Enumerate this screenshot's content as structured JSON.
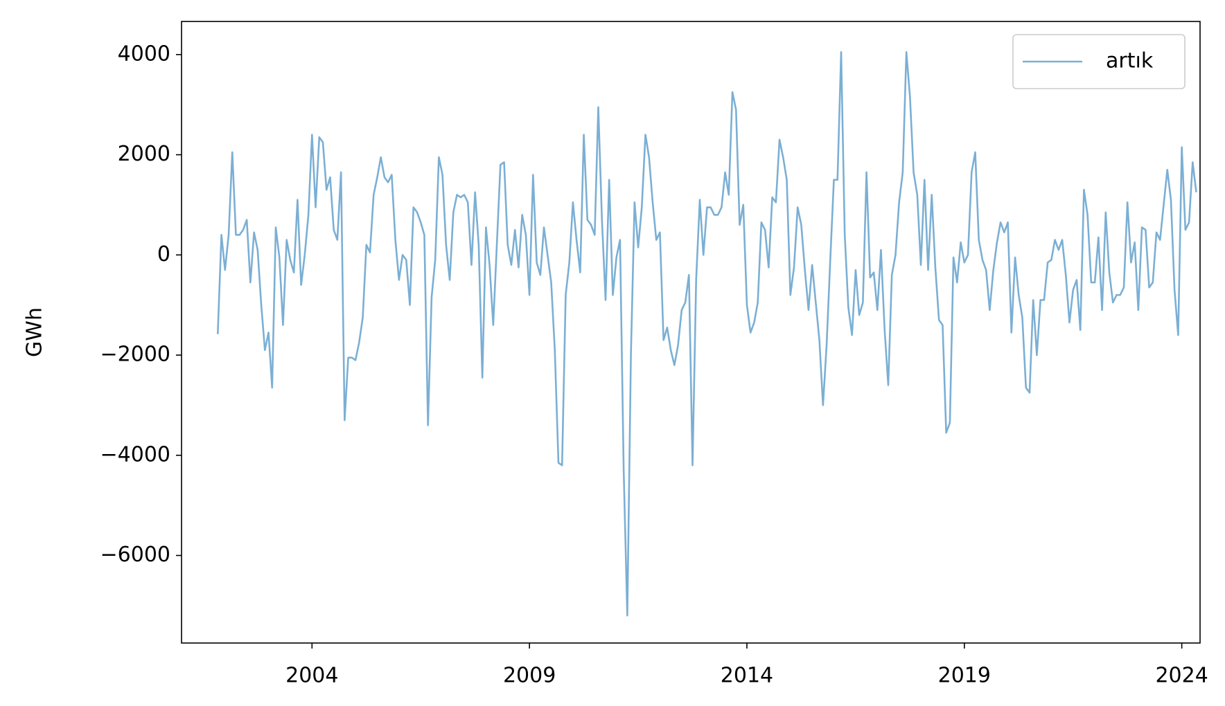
{
  "chart_data": {
    "type": "line",
    "y_label": "GWh",
    "x": [
      2001.833,
      2001.917,
      2002.0,
      2002.083,
      2002.167,
      2002.25,
      2002.333,
      2002.417,
      2002.5,
      2002.583,
      2002.667,
      2002.75,
      2002.833,
      2002.917,
      2003.0,
      2003.083,
      2003.167,
      2003.25,
      2003.333,
      2003.417,
      2003.5,
      2003.583,
      2003.667,
      2003.75,
      2003.833,
      2003.917,
      2004.0,
      2004.083,
      2004.167,
      2004.25,
      2004.333,
      2004.417,
      2004.5,
      2004.583,
      2004.667,
      2004.75,
      2004.833,
      2004.917,
      2005.0,
      2005.083,
      2005.167,
      2005.25,
      2005.333,
      2005.417,
      2005.5,
      2005.583,
      2005.667,
      2005.75,
      2005.833,
      2005.917,
      2006.0,
      2006.083,
      2006.167,
      2006.25,
      2006.333,
      2006.417,
      2006.5,
      2006.583,
      2006.667,
      2006.75,
      2006.833,
      2006.917,
      2007.0,
      2007.083,
      2007.167,
      2007.25,
      2007.333,
      2007.417,
      2007.5,
      2007.583,
      2007.667,
      2007.75,
      2007.833,
      2007.917,
      2008.0,
      2008.083,
      2008.167,
      2008.25,
      2008.333,
      2008.417,
      2008.5,
      2008.583,
      2008.667,
      2008.75,
      2008.833,
      2008.917,
      2009.0,
      2009.083,
      2009.167,
      2009.25,
      2009.333,
      2009.417,
      2009.5,
      2009.583,
      2009.667,
      2009.75,
      2009.833,
      2009.917,
      2010.0,
      2010.083,
      2010.167,
      2010.25,
      2010.333,
      2010.417,
      2010.5,
      2010.583,
      2010.667,
      2010.75,
      2010.833,
      2010.917,
      2011.0,
      2011.083,
      2011.167,
      2011.25,
      2011.333,
      2011.417,
      2011.5,
      2011.583,
      2011.667,
      2011.75,
      2011.833,
      2011.917,
      2012.0,
      2012.083,
      2012.167,
      2012.25,
      2012.333,
      2012.417,
      2012.5,
      2012.583,
      2012.667,
      2012.75,
      2012.833,
      2012.917,
      2013.0,
      2013.083,
      2013.167,
      2013.25,
      2013.333,
      2013.417,
      2013.5,
      2013.583,
      2013.667,
      2013.75,
      2013.833,
      2013.917,
      2014.0,
      2014.083,
      2014.167,
      2014.25,
      2014.333,
      2014.417,
      2014.5,
      2014.583,
      2014.667,
      2014.75,
      2014.833,
      2014.917,
      2015.0,
      2015.083,
      2015.167,
      2015.25,
      2015.333,
      2015.417,
      2015.5,
      2015.583,
      2015.667,
      2015.75,
      2015.833,
      2015.917,
      2016.0,
      2016.083,
      2016.167,
      2016.25,
      2016.333,
      2016.417,
      2016.5,
      2016.583,
      2016.667,
      2016.75,
      2016.833,
      2016.917,
      2017.0,
      2017.083,
      2017.167,
      2017.25,
      2017.333,
      2017.417,
      2017.5,
      2017.583,
      2017.667,
      2017.75,
      2017.833,
      2017.917,
      2018.0,
      2018.083,
      2018.167,
      2018.25,
      2018.333,
      2018.417,
      2018.5,
      2018.583,
      2018.667,
      2018.75,
      2018.833,
      2018.917,
      2019.0,
      2019.083,
      2019.167,
      2019.25,
      2019.333,
      2019.417,
      2019.5,
      2019.583,
      2019.667,
      2019.75,
      2019.833,
      2019.917,
      2020.0,
      2020.083,
      2020.167,
      2020.25,
      2020.333,
      2020.417,
      2020.5,
      2020.583,
      2020.667,
      2020.75,
      2020.833,
      2020.917,
      2021.0,
      2021.083,
      2021.167,
      2021.25,
      2021.333,
      2021.417,
      2021.5,
      2021.583,
      2021.667,
      2021.75,
      2021.833,
      2021.917,
      2022.0,
      2022.083,
      2022.167,
      2022.25,
      2022.333,
      2022.417,
      2022.5,
      2022.583,
      2022.667,
      2022.75,
      2022.833,
      2022.917,
      2023.0,
      2023.083,
      2023.167,
      2023.25,
      2023.333,
      2023.417,
      2023.5,
      2023.583,
      2023.667,
      2023.75,
      2023.833,
      2023.917,
      2024.0,
      2024.083,
      2024.167,
      2024.25,
      2024.333
    ],
    "series": [
      {
        "name": "artık",
        "color": "#7bafd4",
        "values": [
          -1580,
          400,
          -300,
          400,
          2050,
          400,
          400,
          500,
          700,
          -550,
          450,
          100,
          -1000,
          -1900,
          -1550,
          -2650,
          550,
          -50,
          -1400,
          300,
          -100,
          -350,
          1100,
          -600,
          0,
          800,
          2400,
          950,
          2350,
          2250,
          1300,
          1550,
          500,
          300,
          1650,
          -3300,
          -2050,
          -2050,
          -2100,
          -1750,
          -1250,
          200,
          50,
          1200,
          1550,
          1950,
          1550,
          1450,
          1600,
          300,
          -500,
          0,
          -100,
          -1000,
          950,
          850,
          650,
          400,
          -3400,
          -850,
          -100,
          1950,
          1600,
          200,
          -500,
          850,
          1200,
          1150,
          1200,
          1050,
          -200,
          1250,
          200,
          -2450,
          550,
          -200,
          -1400,
          200,
          1800,
          1850,
          200,
          -200,
          500,
          -250,
          800,
          400,
          -800,
          1600,
          -150,
          -400,
          550,
          0,
          -550,
          -1900,
          -4150,
          -4200,
          -800,
          -150,
          1050,
          300,
          -350,
          2400,
          700,
          600,
          400,
          2950,
          700,
          -900,
          1500,
          -800,
          -50,
          300,
          -4300,
          -7200,
          -2000,
          1050,
          150,
          950,
          2400,
          1950,
          1050,
          300,
          450,
          -1700,
          -1450,
          -1900,
          -2200,
          -1800,
          -1100,
          -950,
          -400,
          -4200,
          -500,
          1100,
          0,
          950,
          950,
          800,
          800,
          950,
          1650,
          1200,
          3250,
          2900,
          600,
          1000,
          -1000,
          -1550,
          -1350,
          -950,
          650,
          500,
          -250,
          1150,
          1050,
          2300,
          1950,
          1500,
          -800,
          -250,
          950,
          600,
          -300,
          -1100,
          -200,
          -950,
          -1700,
          -3000,
          -1800,
          -100,
          1500,
          1500,
          4050,
          400,
          -1050,
          -1600,
          -300,
          -1200,
          -950,
          1650,
          -450,
          -350,
          -1100,
          100,
          -1500,
          -2600,
          -400,
          0,
          1050,
          1650,
          4050,
          3150,
          1650,
          1200,
          -200,
          1500,
          -300,
          1200,
          -250,
          -1300,
          -1400,
          -3550,
          -3350,
          -50,
          -550,
          250,
          -150,
          0,
          1650,
          2050,
          300,
          -100,
          -300,
          -1100,
          -300,
          250,
          650,
          450,
          650,
          -1550,
          -50,
          -800,
          -1250,
          -2650,
          -2750,
          -900,
          -2000,
          -900,
          -900,
          -150,
          -100,
          300,
          100,
          300,
          -400,
          -1350,
          -700,
          -500,
          -1500,
          1300,
          800,
          -550,
          -550,
          350,
          -1100,
          850,
          -350,
          -950,
          -800,
          -800,
          -650,
          1050,
          -150,
          250,
          -1100,
          550,
          500,
          -650,
          -550,
          450,
          300,
          1000,
          1700,
          1100,
          -700,
          -1600,
          2150,
          500,
          650,
          1850,
          1250
        ]
      }
    ],
    "xlim": [
      2001.0,
      2024.42
    ],
    "xticks": [
      2004,
      2009,
      2014,
      2019,
      2024
    ],
    "ylim": [
      -7748,
      4661
    ],
    "yticks": [
      {
        "value": -6000,
        "label": "−6000"
      },
      {
        "value": -4000,
        "label": "−4000"
      },
      {
        "value": -2000,
        "label": "−2000"
      },
      0,
      2000,
      4000
    ],
    "legend": "upper right"
  }
}
